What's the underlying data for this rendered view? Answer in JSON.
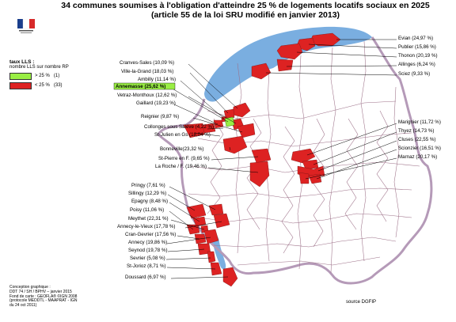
{
  "title": {
    "line1": "34 communes soumises à l'obligation d'atteindre 25 % de logements locatifs sociaux en 2025",
    "line2": "(article 55 de la loi SRU modifié en janvier 2013)"
  },
  "legend": {
    "title": "taux LLS :",
    "subtitle": "nombre LLS sur nombre RP",
    "items": [
      {
        "label": "> 25 %",
        "count": "(1)",
        "color": "#99ee44"
      },
      {
        "label": "< 25 %",
        "count": "(33)",
        "color": "#dd2222"
      }
    ]
  },
  "colors": {
    "lake": "#7aaee0",
    "commune_fill": "#dd2222",
    "highlight_fill": "#99ee44",
    "border_boundary": "#b59ab8",
    "commune_lines": "#9c6f87"
  },
  "left_labels": [
    {
      "text": "Cranves-Sales (10,09 %)"
    },
    {
      "text": "Ville-la-Grand (18,03 %)"
    },
    {
      "text": "Ambilly (11,14 %)"
    },
    {
      "text": "Annemasse (25,62 %)",
      "highlight": true
    },
    {
      "text": "Vetraz-Monthoux (12,62 %)"
    },
    {
      "text": "Gaillard (19,23 %)"
    },
    {
      "text": "Reignier (9,87 %)"
    },
    {
      "text": "Collonges sous Salève (4,22 %)"
    },
    {
      "text": "St-Julien en Gs (18,04 %)"
    },
    {
      "text": "Bonneville(23,32 %)"
    },
    {
      "text": "St-Pierre en F. (9,65 %)"
    },
    {
      "text": "La Roche / F. (19,46 %)"
    },
    {
      "text": "Pringy (7,61 %)"
    },
    {
      "text": "Sillingy (12,29 %)"
    },
    {
      "text": "Epagny (8,48 %)"
    },
    {
      "text": "Poisy (11,06 %)"
    },
    {
      "text": "Meythet (22,31 %)"
    },
    {
      "text": "Annecy-le-Vieux (17,78 %)"
    },
    {
      "text": "Cran-Gevrier (17,56 %)"
    },
    {
      "text": "Annecy (19,86 %)"
    },
    {
      "text": "Seynod (19,78 %)"
    },
    {
      "text": "Sevrier (5,08 %)"
    },
    {
      "text": "St-Jorioz (8,71 %)"
    },
    {
      "text": "Doussard (6,97 %)"
    }
  ],
  "right_labels": [
    {
      "text": "Evian (24,97 %)"
    },
    {
      "text": "Publier (15,86 %)"
    },
    {
      "text": "Thonon (20,19 %)"
    },
    {
      "text": "Allinges (6,24 %)"
    },
    {
      "text": "Sciez (9,33 %)"
    },
    {
      "text": "Marignier (11,72 %)"
    },
    {
      "text": "Thyez (14,73 %)"
    },
    {
      "text": "Cluses (22,55 %)"
    },
    {
      "text": "Scionzier (16,51 %)"
    },
    {
      "text": "Marnaz (20,17 %)"
    }
  ],
  "credits": [
    "Conception graphique :",
    "DDT 74 / SH / BPHV – janvier 2015",
    "Fond de carte : GEOFLA® ©IGN 2008",
    "(protocole MEDDTL - MAAPRAT - IGN",
    "du 24 oct 2011)"
  ],
  "source": "source DGFIP"
}
